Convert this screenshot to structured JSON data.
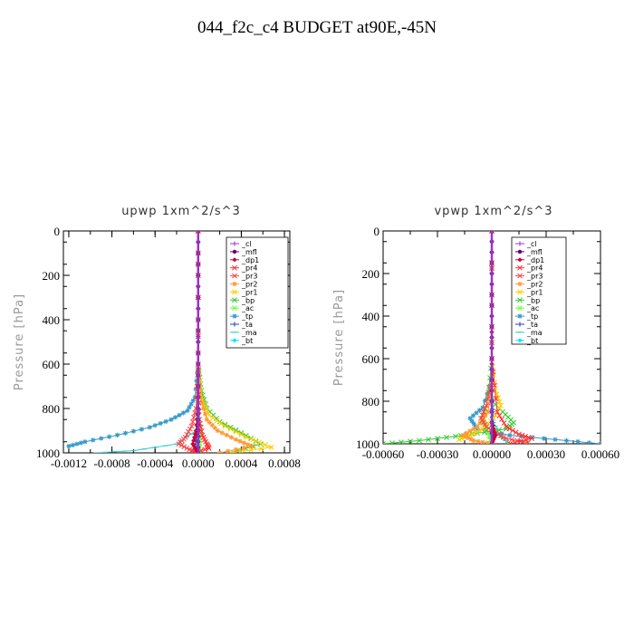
{
  "title": "044_f2c_c4  BUDGET at90E,-45N",
  "chart_data": [
    {
      "type": "line",
      "title": "upwp   1xm^2/s^3",
      "xlabel": "",
      "ylabel": "Pressure [hPa]",
      "xlim": [
        -0.00125,
        0.00085
      ],
      "ylim": [
        1000,
        0
      ],
      "xticks": [
        -0.0012,
        -0.0008,
        -0.0004,
        0.0,
        0.0004,
        0.0008
      ],
      "xticklabels": [
        "-0.0012",
        "-0.0008",
        "-0.0004",
        "0.0000",
        "0.0004",
        "0.0008"
      ],
      "yticks": [
        0,
        200,
        400,
        600,
        800,
        1000
      ],
      "yticklabels": [
        "0",
        "200",
        "400",
        "600",
        "800",
        "1000"
      ],
      "legend": [
        "_cl",
        "_mfl",
        "_dp1",
        "_pr4",
        "_pr3",
        "_pr2",
        "_pr1",
        "_bp",
        "_ac",
        "_tp",
        "_ta",
        "_ma",
        "_bt"
      ],
      "series": [
        {
          "name": "_cl",
          "color": "#9933cc",
          "x": [
            0,
            0,
            0,
            0,
            0,
            0,
            0
          ],
          "y": [
            0,
            200,
            400,
            600,
            800,
            900,
            1000
          ]
        },
        {
          "name": "_mfl",
          "color": "#660066",
          "x": [
            0,
            0,
            0,
            0,
            0,
            0,
            0
          ],
          "y": [
            0,
            200,
            400,
            600,
            800,
            900,
            1000
          ]
        },
        {
          "name": "_dp1",
          "color": "#cc0033",
          "x": [
            0,
            0,
            0,
            0,
            0,
            -2e-05,
            -5e-05,
            0
          ],
          "y": [
            0,
            200,
            400,
            600,
            800,
            900,
            960,
            1000
          ]
        },
        {
          "name": "_pr4",
          "color": "#ff3333",
          "x": [
            0,
            0,
            0,
            1e-05,
            4e-05,
            8e-05,
            0.0001,
            -5e-05
          ],
          "y": [
            0,
            400,
            700,
            850,
            920,
            960,
            980,
            1000
          ]
        },
        {
          "name": "_pr3",
          "color": "#ff4444",
          "x": [
            0,
            0,
            -2e-05,
            -6e-05,
            -0.00012,
            -0.00018,
            -8e-05,
            0
          ],
          "y": [
            0,
            600,
            800,
            880,
            930,
            960,
            985,
            1000
          ]
        },
        {
          "name": "_pr2",
          "color": "#ff9933",
          "x": [
            0,
            0,
            2e-05,
            8e-05,
            0.00018,
            0.00035,
            0.0005,
            0.0002
          ],
          "y": [
            0,
            600,
            750,
            850,
            900,
            940,
            970,
            1000
          ]
        },
        {
          "name": "_pr1",
          "color": "#ffcc00",
          "x": [
            0,
            0,
            3e-05,
            0.0001,
            0.00025,
            0.00045,
            0.00068,
            0.0003
          ],
          "y": [
            0,
            600,
            750,
            830,
            880,
            930,
            975,
            1000
          ]
        },
        {
          "name": "_bp",
          "color": "#33cc33",
          "x": [
            0,
            0,
            3e-05,
            8e-05,
            0.0002,
            0.0004,
            0.00058,
            0.0003
          ],
          "y": [
            0,
            600,
            720,
            800,
            860,
            910,
            960,
            1000
          ]
        },
        {
          "name": "_ac",
          "color": "#66ff33",
          "x": [
            0,
            0,
            0,
            1e-05,
            2e-05,
            1e-05,
            0
          ],
          "y": [
            0,
            400,
            700,
            850,
            920,
            970,
            1000
          ]
        },
        {
          "name": "_tp",
          "color": "#3399cc",
          "x": [
            0,
            0,
            -3e-05,
            -0.0001,
            -0.00025,
            -0.00045,
            -0.00075,
            -0.00105,
            -0.0012
          ],
          "y": [
            0,
            600,
            750,
            810,
            850,
            885,
            920,
            950,
            970
          ]
        },
        {
          "name": "_ta",
          "color": "#3333cc",
          "x": [
            0,
            0,
            0,
            -1e-05,
            -3e-05,
            -5e-05
          ],
          "y": [
            0,
            400,
            700,
            900,
            980,
            1000
          ]
        },
        {
          "name": "_ma",
          "color": "#33cccc",
          "x": [
            0,
            0,
            -2e-05,
            -0.0002,
            -0.0006,
            -0.00095
          ],
          "y": [
            0,
            600,
            900,
            960,
            990,
            1000
          ]
        },
        {
          "name": "_bt",
          "color": "#00e5ff",
          "x": [
            0,
            0,
            0,
            0,
            0
          ],
          "y": [
            0,
            400,
            800,
            950,
            1000
          ]
        }
      ]
    },
    {
      "type": "line",
      "title": "vpwp   1xm^2/s^3",
      "xlabel": "",
      "ylabel": "Pressure [hPa]",
      "xlim": [
        -0.0006,
        0.0006
      ],
      "ylim": [
        1000,
        0
      ],
      "xticks": [
        -0.0006,
        -0.0003,
        0.0,
        0.0003,
        0.0006
      ],
      "xticklabels": [
        "-0.00060",
        "-0.00030",
        "0.00000",
        "0.00030",
        "0.00060"
      ],
      "yticks": [
        0,
        200,
        400,
        600,
        800,
        1000
      ],
      "yticklabels": [
        "0",
        "200",
        "400",
        "600",
        "800",
        "1000"
      ],
      "legend": [
        "_cl",
        "_mfl",
        "_dp1",
        "_pr4",
        "_pr3",
        "_pr2",
        "_pr1",
        "_bp",
        "_ac",
        "_tp",
        "_ta",
        "_ma",
        "_bt"
      ],
      "series": [
        {
          "name": "_cl",
          "color": "#9933cc",
          "x": [
            0,
            0,
            0,
            0,
            0,
            0
          ],
          "y": [
            0,
            200,
            400,
            600,
            800,
            1000
          ]
        },
        {
          "name": "_mfl",
          "color": "#660066",
          "x": [
            0,
            0,
            0,
            0,
            0,
            0
          ],
          "y": [
            0,
            200,
            400,
            600,
            800,
            1000
          ]
        },
        {
          "name": "_dp1",
          "color": "#cc0033",
          "x": [
            0,
            0,
            0,
            0,
            2e-05,
            0
          ],
          "y": [
            0,
            400,
            700,
            900,
            960,
            1000
          ]
        },
        {
          "name": "_pr4",
          "color": "#ff3333",
          "x": [
            0,
            0,
            3e-05,
            8e-05,
            0.00015,
            0.00022,
            0.0001
          ],
          "y": [
            0,
            600,
            850,
            920,
            955,
            975,
            1000
          ]
        },
        {
          "name": "_pr3",
          "color": "#ff4444",
          "x": [
            0,
            0,
            -3e-05,
            -6e-05,
            -3e-05,
            2e-05,
            8e-05,
            0.0002
          ],
          "y": [
            0,
            700,
            820,
            880,
            920,
            950,
            975,
            995
          ]
        },
        {
          "name": "_pr2",
          "color": "#ff9933",
          "x": [
            0,
            0,
            -2e-05,
            -8e-05,
            -0.00016,
            -0.0001,
            0
          ],
          "y": [
            0,
            700,
            850,
            920,
            960,
            985,
            1000
          ]
        },
        {
          "name": "_pr1",
          "color": "#ffcc00",
          "x": [
            0,
            0,
            2e-05,
            5e-05,
            1e-05,
            -5e-05,
            -0.00012,
            -0.00018
          ],
          "y": [
            0,
            600,
            750,
            820,
            880,
            930,
            960,
            980
          ]
        },
        {
          "name": "_bp",
          "color": "#33cc33",
          "x": [
            0,
            0,
            -2e-05,
            6e-05,
            0.00012,
            8e-05,
            -8e-05,
            -0.0002,
            -0.0004,
            -0.0006
          ],
          "y": [
            0,
            600,
            780,
            850,
            900,
            930,
            950,
            965,
            985,
            1000
          ]
        },
        {
          "name": "_ac",
          "color": "#66ff33",
          "x": [
            0,
            0,
            -3e-05,
            -5e-05,
            -3e-05,
            0
          ],
          "y": [
            0,
            700,
            820,
            880,
            930,
            1000
          ]
        },
        {
          "name": "_tp",
          "color": "#3399cc",
          "x": [
            0,
            0,
            -5e-05,
            -0.00012,
            -8e-05,
            0.0001,
            0.00035,
            0.0006
          ],
          "y": [
            0,
            700,
            830,
            880,
            930,
            960,
            980,
            1000
          ]
        },
        {
          "name": "_ta",
          "color": "#3333cc",
          "x": [
            0,
            0,
            0,
            1e-05,
            0
          ],
          "y": [
            0,
            400,
            800,
            950,
            1000
          ]
        },
        {
          "name": "_ma",
          "color": "#33cccc",
          "x": [
            0,
            0,
            1e-05,
            5e-05,
            0.0001
          ],
          "y": [
            0,
            700,
            900,
            970,
            1000
          ]
        },
        {
          "name": "_bt",
          "color": "#00e5ff",
          "x": [
            0,
            0,
            0,
            0,
            0
          ],
          "y": [
            0,
            400,
            800,
            950,
            1000
          ]
        }
      ]
    }
  ]
}
